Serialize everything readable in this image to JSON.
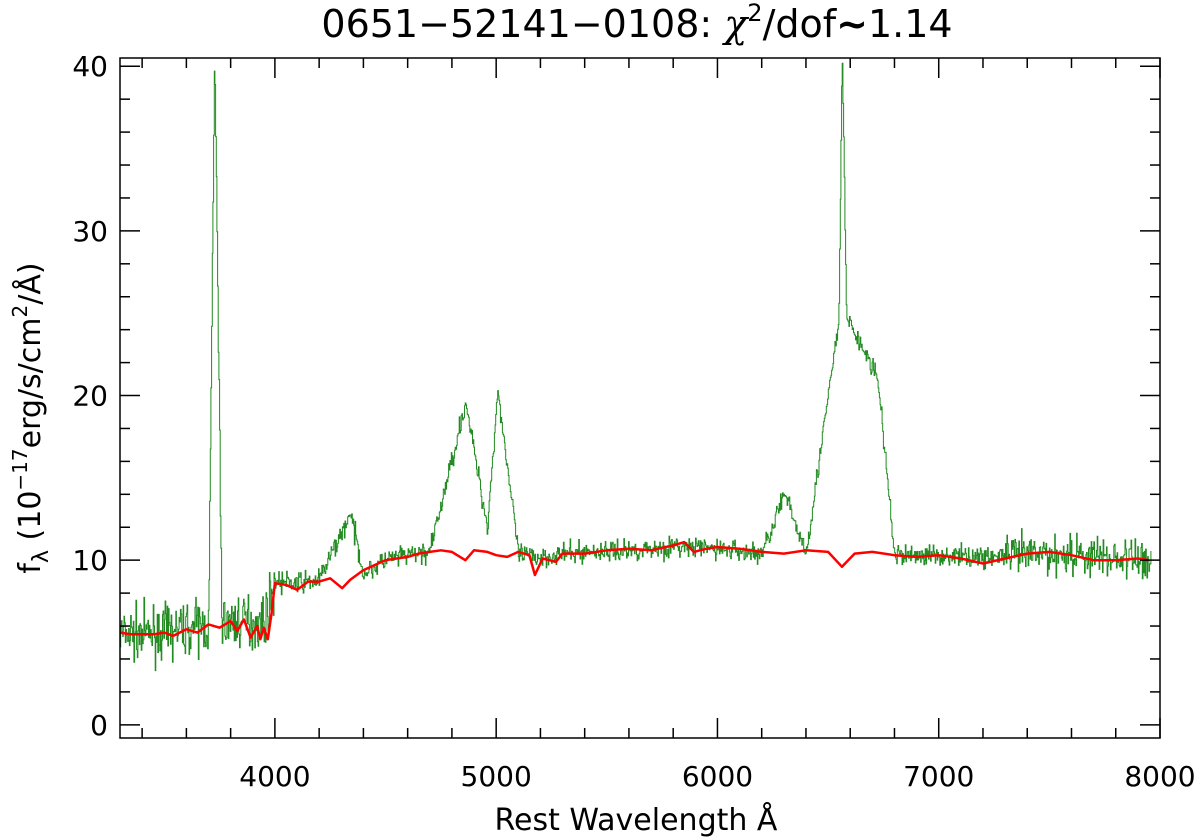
{
  "chart_data": {
    "type": "line",
    "title": {
      "prefix": "0651−52141−0108: ",
      "chi": "χ",
      "power": "2",
      "suffix": "/dof",
      "tilde": "~",
      "value": "1.14"
    },
    "xlabel": "Rest Wavelength Å",
    "ylabel": {
      "f": "f",
      "lambda": "λ",
      "open": " (10",
      "exp": "−17",
      "units": "erg/s/cm",
      "sq": "2",
      "close": "/Å)"
    },
    "xlim": [
      3300,
      8000
    ],
    "ylim": [
      -0.8,
      40.5
    ],
    "xticks": [
      {
        "value": 4000,
        "label": "4000"
      },
      {
        "value": 5000,
        "label": "5000"
      },
      {
        "value": 6000,
        "label": "6000"
      },
      {
        "value": 7000,
        "label": "7000"
      },
      {
        "value": 8000,
        "label": "8000"
      }
    ],
    "yticks": [
      {
        "value": 0,
        "label": "0"
      },
      {
        "value": 10,
        "label": "10"
      },
      {
        "value": 20,
        "label": "20"
      },
      {
        "value": 30,
        "label": "30"
      },
      {
        "value": 40,
        "label": "40"
      }
    ],
    "x_minor_step": 200,
    "y_minor_step": 2,
    "grid": false,
    "legend": "none",
    "series": [
      {
        "color": "#228b22",
        "style": "histogram-step",
        "description_points": [
          {
            "x": 3300,
            "y": 5.5
          },
          {
            "x": 3400,
            "y": 5.5
          },
          {
            "x": 3500,
            "y": 5.6
          },
          {
            "x": 3600,
            "y": 5.9
          },
          {
            "x": 3700,
            "y": 6.0
          },
          {
            "x": 3727,
            "y": 41.0
          },
          {
            "x": 3760,
            "y": 6.2
          },
          {
            "x": 3850,
            "y": 6.3
          },
          {
            "x": 3950,
            "y": 6.2
          },
          {
            "x": 4000,
            "y": 8.7
          },
          {
            "x": 4100,
            "y": 8.6
          },
          {
            "x": 4200,
            "y": 8.8
          },
          {
            "x": 4340,
            "y": 12.8
          },
          {
            "x": 4400,
            "y": 9.2
          },
          {
            "x": 4500,
            "y": 10.0
          },
          {
            "x": 4600,
            "y": 10.3
          },
          {
            "x": 4700,
            "y": 10.5
          },
          {
            "x": 4861,
            "y": 19.6
          },
          {
            "x": 4959,
            "y": 12.0
          },
          {
            "x": 5007,
            "y": 20.3
          },
          {
            "x": 5100,
            "y": 10.3
          },
          {
            "x": 5200,
            "y": 10.2
          },
          {
            "x": 5400,
            "y": 10.5
          },
          {
            "x": 5600,
            "y": 10.6
          },
          {
            "x": 5800,
            "y": 10.8
          },
          {
            "x": 6000,
            "y": 10.7
          },
          {
            "x": 6200,
            "y": 10.4
          },
          {
            "x": 6300,
            "y": 14.0
          },
          {
            "x": 6400,
            "y": 10.5
          },
          {
            "x": 6548,
            "y": 24.5
          },
          {
            "x": 6563,
            "y": 41.0
          },
          {
            "x": 6583,
            "y": 24.7
          },
          {
            "x": 6717,
            "y": 21.3
          },
          {
            "x": 6731,
            "y": 20.0
          },
          {
            "x": 6800,
            "y": 10.3
          },
          {
            "x": 7000,
            "y": 10.3
          },
          {
            "x": 7200,
            "y": 10.2
          },
          {
            "x": 7400,
            "y": 10.3
          },
          {
            "x": 7600,
            "y": 10.4
          },
          {
            "x": 7800,
            "y": 10.1
          },
          {
            "x": 7950,
            "y": 10.0
          }
        ]
      },
      {
        "color": "#ff0000",
        "style": "model",
        "points": [
          {
            "x": 3300,
            "y": 5.6
          },
          {
            "x": 3350,
            "y": 5.5
          },
          {
            "x": 3400,
            "y": 5.5
          },
          {
            "x": 3450,
            "y": 5.5
          },
          {
            "x": 3500,
            "y": 5.6
          },
          {
            "x": 3540,
            "y": 5.4
          },
          {
            "x": 3600,
            "y": 5.8
          },
          {
            "x": 3650,
            "y": 5.6
          },
          {
            "x": 3700,
            "y": 6.1
          },
          {
            "x": 3750,
            "y": 5.9
          },
          {
            "x": 3800,
            "y": 6.3
          },
          {
            "x": 3830,
            "y": 5.7
          },
          {
            "x": 3860,
            "y": 6.4
          },
          {
            "x": 3890,
            "y": 5.3
          },
          {
            "x": 3920,
            "y": 6.0
          },
          {
            "x": 3934,
            "y": 5.2
          },
          {
            "x": 3950,
            "y": 5.9
          },
          {
            "x": 3968,
            "y": 5.2
          },
          {
            "x": 3985,
            "y": 6.8
          },
          {
            "x": 4000,
            "y": 8.6
          },
          {
            "x": 4050,
            "y": 8.5
          },
          {
            "x": 4101,
            "y": 8.2
          },
          {
            "x": 4150,
            "y": 8.7
          },
          {
            "x": 4200,
            "y": 8.7
          },
          {
            "x": 4250,
            "y": 8.9
          },
          {
            "x": 4304,
            "y": 8.3
          },
          {
            "x": 4340,
            "y": 8.8
          },
          {
            "x": 4400,
            "y": 9.4
          },
          {
            "x": 4450,
            "y": 9.7
          },
          {
            "x": 4500,
            "y": 10.0
          },
          {
            "x": 4550,
            "y": 10.1
          },
          {
            "x": 4600,
            "y": 10.2
          },
          {
            "x": 4650,
            "y": 10.4
          },
          {
            "x": 4700,
            "y": 10.5
          },
          {
            "x": 4750,
            "y": 10.6
          },
          {
            "x": 4800,
            "y": 10.5
          },
          {
            "x": 4861,
            "y": 10.0
          },
          {
            "x": 4900,
            "y": 10.6
          },
          {
            "x": 4960,
            "y": 10.5
          },
          {
            "x": 5000,
            "y": 10.3
          },
          {
            "x": 5050,
            "y": 10.2
          },
          {
            "x": 5100,
            "y": 10.5
          },
          {
            "x": 5150,
            "y": 10.3
          },
          {
            "x": 5175,
            "y": 9.1
          },
          {
            "x": 5210,
            "y": 10.1
          },
          {
            "x": 5270,
            "y": 9.9
          },
          {
            "x": 5300,
            "y": 10.4
          },
          {
            "x": 5400,
            "y": 10.4
          },
          {
            "x": 5500,
            "y": 10.6
          },
          {
            "x": 5600,
            "y": 10.7
          },
          {
            "x": 5700,
            "y": 10.6
          },
          {
            "x": 5800,
            "y": 10.9
          },
          {
            "x": 5850,
            "y": 11.1
          },
          {
            "x": 5893,
            "y": 10.5
          },
          {
            "x": 5950,
            "y": 10.7
          },
          {
            "x": 6000,
            "y": 10.8
          },
          {
            "x": 6100,
            "y": 10.7
          },
          {
            "x": 6200,
            "y": 10.5
          },
          {
            "x": 6300,
            "y": 10.4
          },
          {
            "x": 6400,
            "y": 10.6
          },
          {
            "x": 6500,
            "y": 10.5
          },
          {
            "x": 6563,
            "y": 9.6
          },
          {
            "x": 6620,
            "y": 10.4
          },
          {
            "x": 6700,
            "y": 10.5
          },
          {
            "x": 6800,
            "y": 10.3
          },
          {
            "x": 6900,
            "y": 10.2
          },
          {
            "x": 7000,
            "y": 10.3
          },
          {
            "x": 7100,
            "y": 10.1
          },
          {
            "x": 7200,
            "y": 9.8
          },
          {
            "x": 7300,
            "y": 10.1
          },
          {
            "x": 7400,
            "y": 10.4
          },
          {
            "x": 7500,
            "y": 10.5
          },
          {
            "x": 7600,
            "y": 10.3
          },
          {
            "x": 7700,
            "y": 10.0
          },
          {
            "x": 7800,
            "y": 10.0
          },
          {
            "x": 7900,
            "y": 10.1
          },
          {
            "x": 7950,
            "y": 10.0
          }
        ]
      }
    ]
  }
}
